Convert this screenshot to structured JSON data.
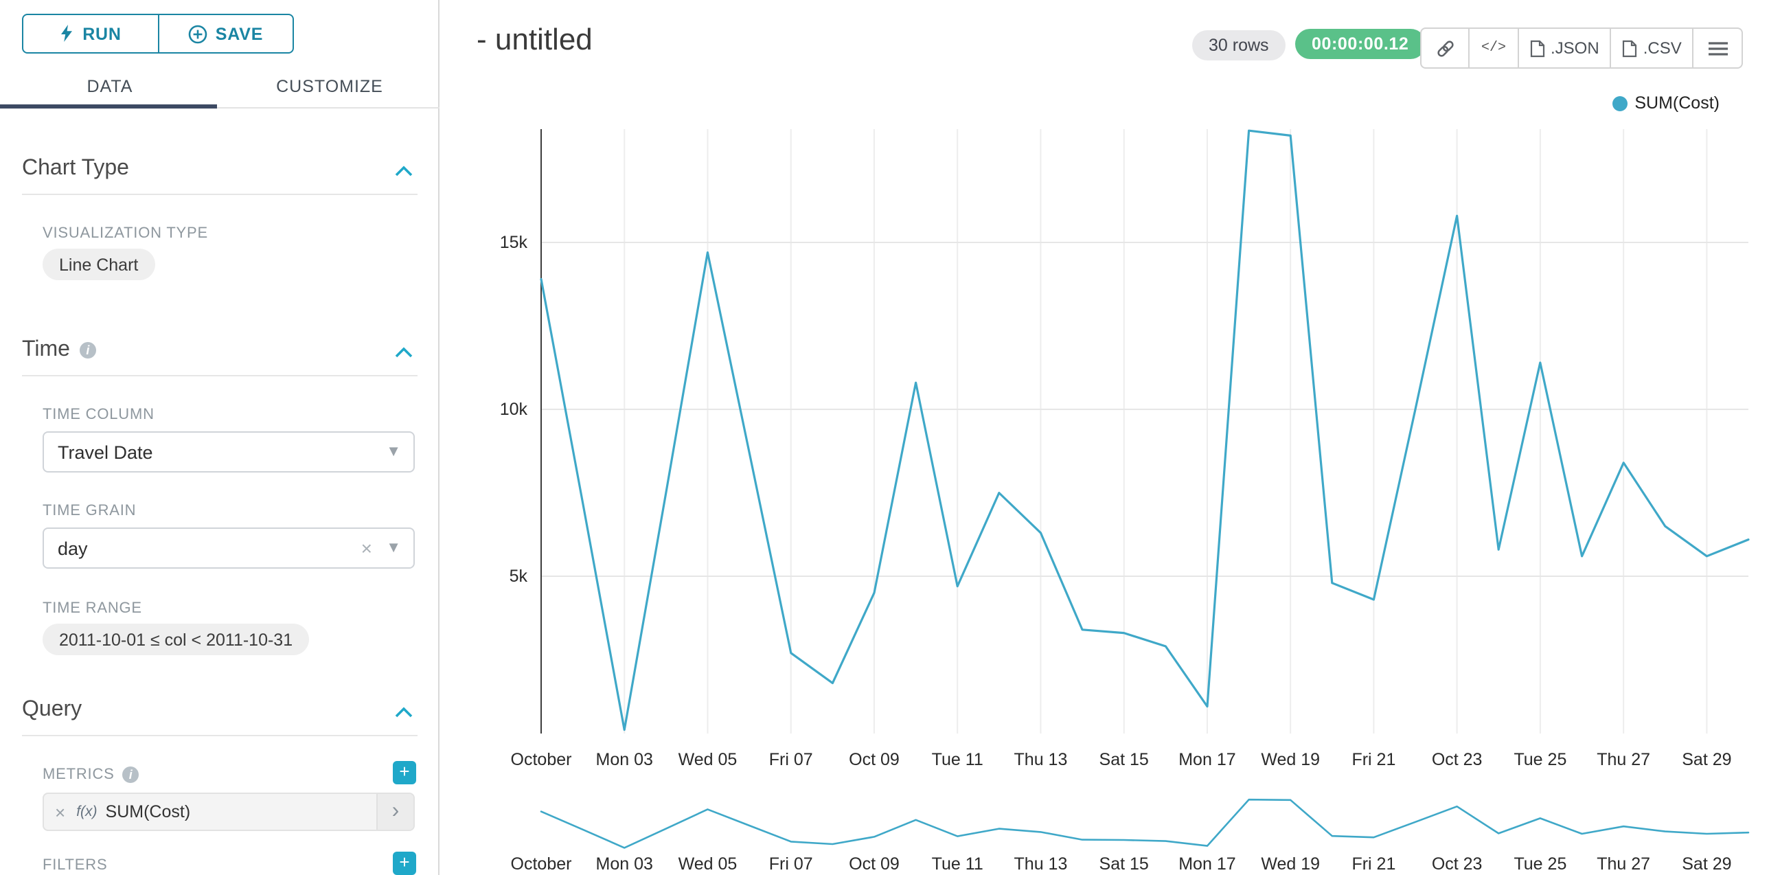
{
  "colors": {
    "accent": "#1fa8c9",
    "run_save_border": "#1a85a3",
    "line": "#3fa8c8",
    "timer_bg": "#5ac189",
    "tab_underline": "#3d4a63"
  },
  "toolbar": {
    "run_label": "RUN",
    "save_label": "SAVE"
  },
  "tabs": {
    "data": "DATA",
    "customize": "CUSTOMIZE"
  },
  "sections": {
    "chart_type": {
      "title": "Chart Type",
      "viz_label": "VISUALIZATION TYPE",
      "viz_value": "Line Chart"
    },
    "time": {
      "title": "Time",
      "time_column_label": "TIME COLUMN",
      "time_column_value": "Travel Date",
      "time_grain_label": "TIME GRAIN",
      "time_grain_value": "day",
      "time_range_label": "TIME RANGE",
      "time_range_value": "2011-10-01 ≤ col < 2011-10-31"
    },
    "query": {
      "title": "Query",
      "metrics_label": "METRICS",
      "metric_fx": "f(x)",
      "metric_value": "SUM(Cost)",
      "filters_label": "FILTERS"
    }
  },
  "header": {
    "title": "- untitled",
    "rows_badge": "30 rows",
    "timer": "00:00:00.12",
    "code_label": "</>",
    "json_label": ".JSON",
    "csv_label": ".CSV"
  },
  "legend": {
    "label": "SUM(Cost)"
  },
  "chart_data": {
    "type": "line",
    "title": "",
    "xlabel": "",
    "ylabel": "",
    "legend_position": "top-right",
    "grid": true,
    "ylim": [
      0,
      18500
    ],
    "x": [
      "2011-10-01",
      "2011-10-02",
      "2011-10-03",
      "2011-10-04",
      "2011-10-05",
      "2011-10-06",
      "2011-10-07",
      "2011-10-08",
      "2011-10-09",
      "2011-10-10",
      "2011-10-11",
      "2011-10-12",
      "2011-10-13",
      "2011-10-14",
      "2011-10-15",
      "2011-10-16",
      "2011-10-17",
      "2011-10-18",
      "2011-10-19",
      "2011-10-20",
      "2011-10-21",
      "2011-10-22",
      "2011-10-23",
      "2011-10-24",
      "2011-10-25",
      "2011-10-26",
      "2011-10-27",
      "2011-10-28",
      "2011-10-29",
      "2011-10-30"
    ],
    "series": [
      {
        "name": "SUM(Cost)",
        "values": [
          13900,
          7200,
          400,
          7500,
          14700,
          8700,
          2700,
          1800,
          4500,
          10800,
          4700,
          7500,
          6300,
          3400,
          3300,
          2900,
          1100,
          18350,
          18200,
          4800,
          4300,
          10000,
          15800,
          5800,
          11400,
          5600,
          8400,
          6500,
          5600,
          6100
        ]
      }
    ],
    "x_tick_indices": [
      0,
      2,
      4,
      6,
      8,
      10,
      12,
      14,
      16,
      18,
      20,
      22,
      24,
      26,
      28
    ],
    "x_tick_labels": [
      "October",
      "Mon 03",
      "Wed 05",
      "Fri 07",
      "Oct 09",
      "Tue 11",
      "Thu 13",
      "Sat 15",
      "Mon 17",
      "Wed 19",
      "Fri 21",
      "Oct 23",
      "Tue 25",
      "Thu 27",
      "Sat 29"
    ],
    "y_ticks": [
      {
        "v": 5000,
        "label": "5k"
      },
      {
        "v": 10000,
        "label": "10k"
      },
      {
        "v": 15000,
        "label": "15k"
      }
    ],
    "has_mini_range_chart": true
  }
}
